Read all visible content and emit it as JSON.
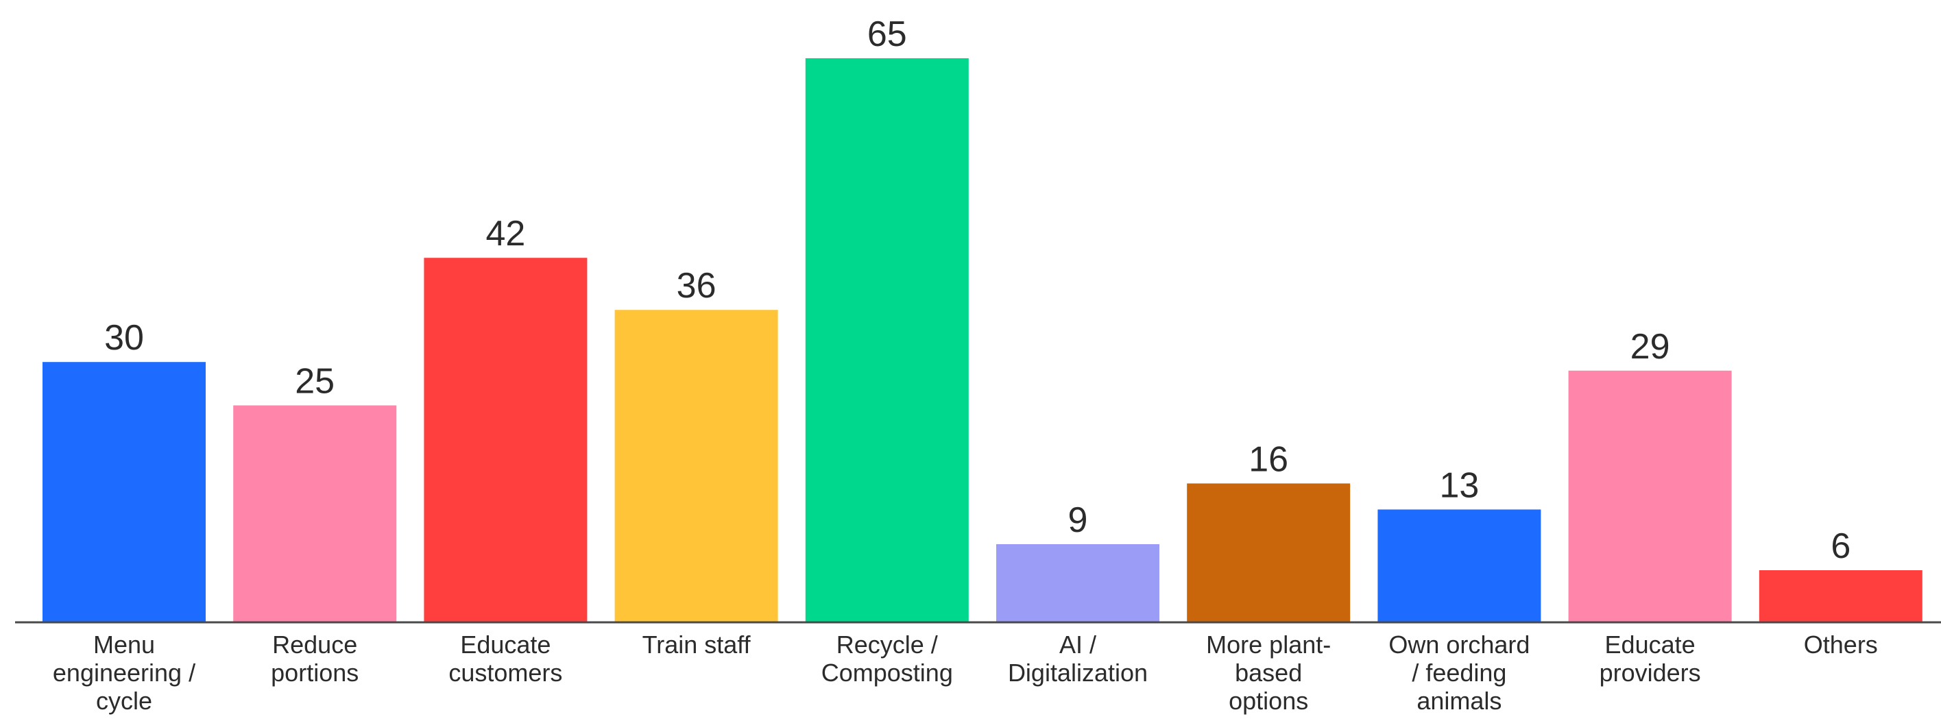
{
  "chart_data": {
    "type": "bar",
    "title": "",
    "xlabel": "",
    "ylabel": "",
    "ylim": [
      0,
      65
    ],
    "grid": false,
    "legend": "none",
    "categories": [
      [
        "Menu",
        "engineering /",
        "cycle"
      ],
      [
        "Reduce",
        "portions"
      ],
      [
        "Educate",
        "customers"
      ],
      [
        "Train staff"
      ],
      [
        "Recycle /",
        "Composting"
      ],
      [
        "AI /",
        "Digitalization"
      ],
      [
        "More plant-",
        "based",
        "options"
      ],
      [
        "Own orchard",
        "/ feeding",
        "animals"
      ],
      [
        "Educate",
        "providers"
      ],
      [
        "Others"
      ]
    ],
    "values": [
      30,
      25,
      42,
      36,
      65,
      9,
      16,
      13,
      29,
      6
    ],
    "colors": [
      "#1e6bff",
      "#ff85ab",
      "#ff3e3e",
      "#ffc438",
      "#00d98d",
      "#9b9cf5",
      "#c9650a",
      "#1e6bff",
      "#ff85ab",
      "#ff3e3e"
    ],
    "axis_color": "#4a4a4a"
  }
}
